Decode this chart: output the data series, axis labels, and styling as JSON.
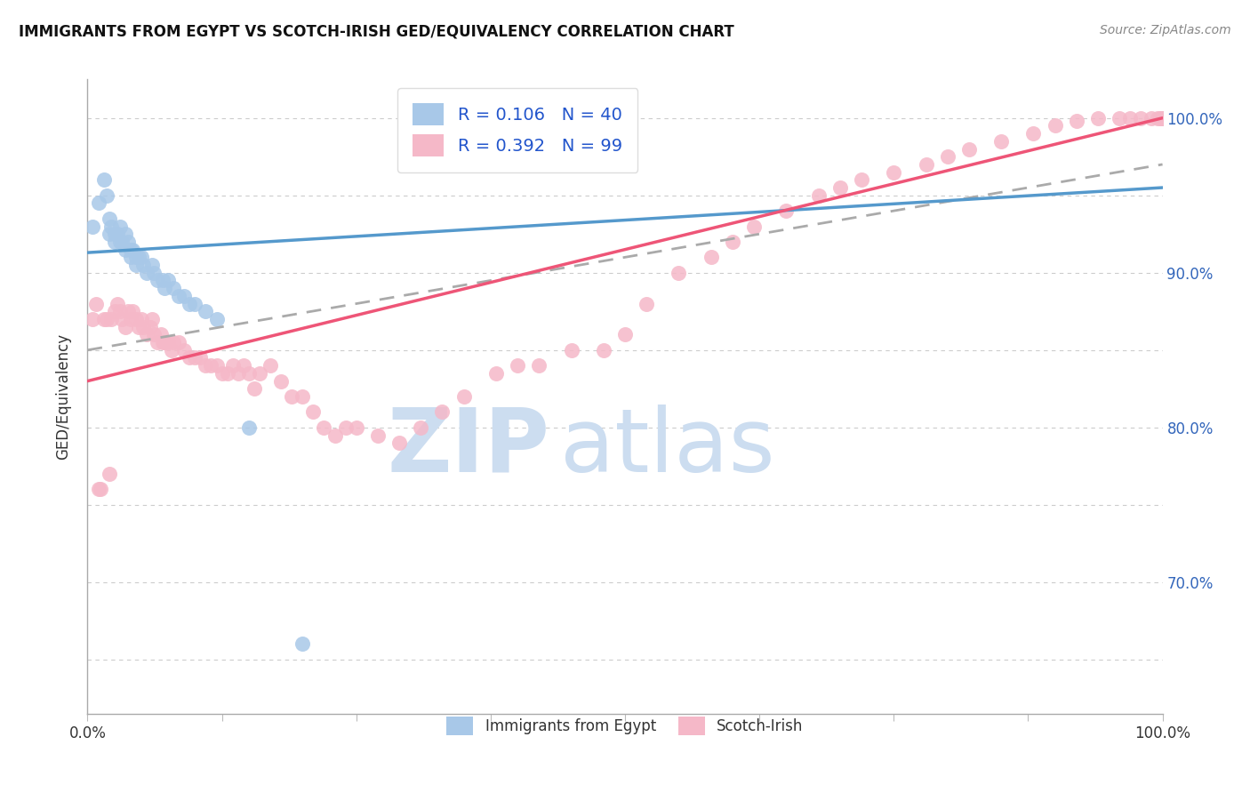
{
  "title": "IMMIGRANTS FROM EGYPT VS SCOTCH-IRISH GED/EQUIVALENCY CORRELATION CHART",
  "source": "Source: ZipAtlas.com",
  "ylabel": "GED/Equivalency",
  "xlim": [
    0.0,
    1.0
  ],
  "ylim": [
    0.615,
    1.025
  ],
  "yticks": [
    0.7,
    0.8,
    0.9,
    1.0
  ],
  "ytick_labels": [
    "70.0%",
    "80.0%",
    "90.0%",
    "100.0%"
  ],
  "ygrid_ticks": [
    0.65,
    0.7,
    0.75,
    0.8,
    0.85,
    0.9,
    0.95,
    1.0
  ],
  "watermark_zip": "ZIP",
  "watermark_atlas": "atlas",
  "legend_r_egypt": "R = 0.106",
  "legend_n_egypt": "N = 40",
  "legend_r_scotch": "R = 0.392",
  "legend_n_scotch": "N = 99",
  "egypt_color": "#a8c8e8",
  "scotch_color": "#f5b8c8",
  "egypt_line_color": "#5599cc",
  "scotch_line_color": "#ee5577",
  "trendline_color": "#aaaaaa",
  "egypt_scatter_x": [
    0.005,
    0.01,
    0.015,
    0.018,
    0.02,
    0.02,
    0.022,
    0.025,
    0.025,
    0.028,
    0.03,
    0.03,
    0.032,
    0.035,
    0.035,
    0.038,
    0.04,
    0.04,
    0.042,
    0.045,
    0.045,
    0.048,
    0.05,
    0.052,
    0.055,
    0.06,
    0.062,
    0.065,
    0.07,
    0.072,
    0.075,
    0.08,
    0.085,
    0.09,
    0.095,
    0.1,
    0.11,
    0.12,
    0.15,
    0.2
  ],
  "egypt_scatter_y": [
    0.93,
    0.945,
    0.96,
    0.95,
    0.935,
    0.925,
    0.93,
    0.925,
    0.92,
    0.925,
    0.93,
    0.92,
    0.92,
    0.925,
    0.915,
    0.92,
    0.915,
    0.91,
    0.915,
    0.91,
    0.905,
    0.91,
    0.91,
    0.905,
    0.9,
    0.905,
    0.9,
    0.895,
    0.895,
    0.89,
    0.895,
    0.89,
    0.885,
    0.885,
    0.88,
    0.88,
    0.875,
    0.87,
    0.8,
    0.66
  ],
  "scotch_scatter_x": [
    0.005,
    0.008,
    0.01,
    0.012,
    0.015,
    0.018,
    0.02,
    0.022,
    0.025,
    0.028,
    0.03,
    0.032,
    0.035,
    0.038,
    0.04,
    0.042,
    0.045,
    0.048,
    0.05,
    0.052,
    0.055,
    0.058,
    0.06,
    0.062,
    0.065,
    0.068,
    0.07,
    0.072,
    0.075,
    0.078,
    0.08,
    0.085,
    0.09,
    0.095,
    0.1,
    0.105,
    0.11,
    0.115,
    0.12,
    0.125,
    0.13,
    0.135,
    0.14,
    0.145,
    0.15,
    0.155,
    0.16,
    0.17,
    0.18,
    0.19,
    0.2,
    0.21,
    0.22,
    0.23,
    0.24,
    0.25,
    0.27,
    0.29,
    0.31,
    0.33,
    0.35,
    0.38,
    0.4,
    0.42,
    0.45,
    0.48,
    0.5,
    0.52,
    0.55,
    0.58,
    0.6,
    0.62,
    0.65,
    0.68,
    0.7,
    0.72,
    0.75,
    0.78,
    0.8,
    0.82,
    0.85,
    0.88,
    0.9,
    0.92,
    0.94,
    0.96,
    0.97,
    0.98,
    0.99,
    0.995,
    0.998,
    0.999,
    1.0,
    1.0,
    1.0,
    1.0,
    1.0,
    1.0,
    1.0
  ],
  "scotch_scatter_y": [
    0.87,
    0.88,
    0.76,
    0.76,
    0.87,
    0.87,
    0.77,
    0.87,
    0.875,
    0.88,
    0.875,
    0.87,
    0.865,
    0.875,
    0.87,
    0.875,
    0.87,
    0.865,
    0.87,
    0.865,
    0.86,
    0.865,
    0.87,
    0.86,
    0.855,
    0.86,
    0.855,
    0.855,
    0.855,
    0.85,
    0.855,
    0.855,
    0.85,
    0.845,
    0.845,
    0.845,
    0.84,
    0.84,
    0.84,
    0.835,
    0.835,
    0.84,
    0.835,
    0.84,
    0.835,
    0.825,
    0.835,
    0.84,
    0.83,
    0.82,
    0.82,
    0.81,
    0.8,
    0.795,
    0.8,
    0.8,
    0.795,
    0.79,
    0.8,
    0.81,
    0.82,
    0.835,
    0.84,
    0.84,
    0.85,
    0.85,
    0.86,
    0.88,
    0.9,
    0.91,
    0.92,
    0.93,
    0.94,
    0.95,
    0.955,
    0.96,
    0.965,
    0.97,
    0.975,
    0.98,
    0.985,
    0.99,
    0.995,
    0.998,
    1.0,
    1.0,
    1.0,
    1.0,
    1.0,
    1.0,
    1.0,
    1.0,
    1.0,
    1.0,
    1.0,
    1.0,
    1.0,
    1.0,
    1.0
  ],
  "egypt_trendline_x": [
    0.0,
    1.0
  ],
  "egypt_trendline_y": [
    0.913,
    0.955
  ],
  "scotch_trendline_x": [
    0.0,
    1.0
  ],
  "scotch_trendline_y": [
    0.83,
    1.0
  ],
  "overall_trendline_x": [
    0.0,
    1.0
  ],
  "overall_trendline_y": [
    0.85,
    0.97
  ]
}
